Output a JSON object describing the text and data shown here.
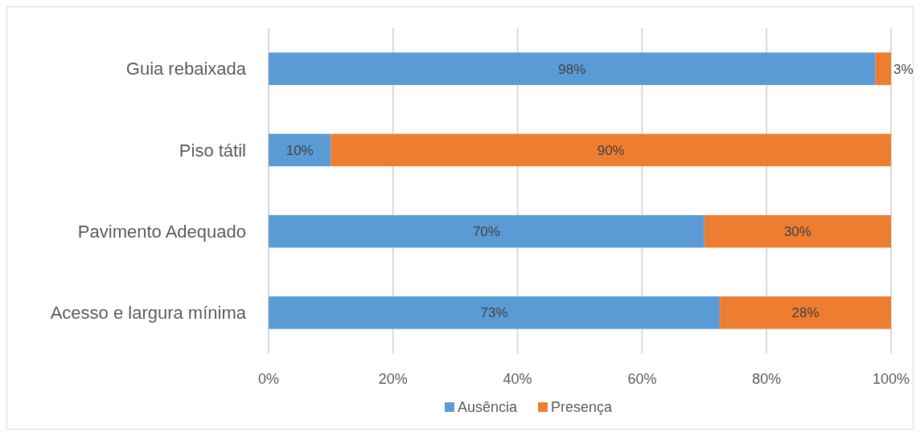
{
  "chart_data": {
    "type": "bar",
    "orientation": "horizontal",
    "stacked": true,
    "categories": [
      "Guia rebaixada",
      "Piso tátil",
      "Pavimento Adequado",
      "Acesso e largura mínima"
    ],
    "series": [
      {
        "name": "Ausência",
        "color": "#5b9bd5",
        "values": [
          97.5,
          10,
          70,
          72.5
        ],
        "value_labels": [
          "98%",
          "10%",
          "70%",
          "73%"
        ]
      },
      {
        "name": "Presença",
        "color": "#ed7d31",
        "values": [
          2.5,
          90,
          30,
          27.5
        ],
        "value_labels": [
          "3%",
          "90%",
          "30%",
          "28%"
        ]
      }
    ],
    "xlim": [
      0,
      100
    ],
    "xticks": [
      {
        "value": 0,
        "label": "0%"
      },
      {
        "value": 20,
        "label": "20%"
      },
      {
        "value": 40,
        "label": "40%"
      },
      {
        "value": 60,
        "label": "60%"
      },
      {
        "value": 80,
        "label": "80%"
      },
      {
        "value": 100,
        "label": "100%"
      }
    ],
    "grid": "x",
    "legend": "bottom"
  }
}
